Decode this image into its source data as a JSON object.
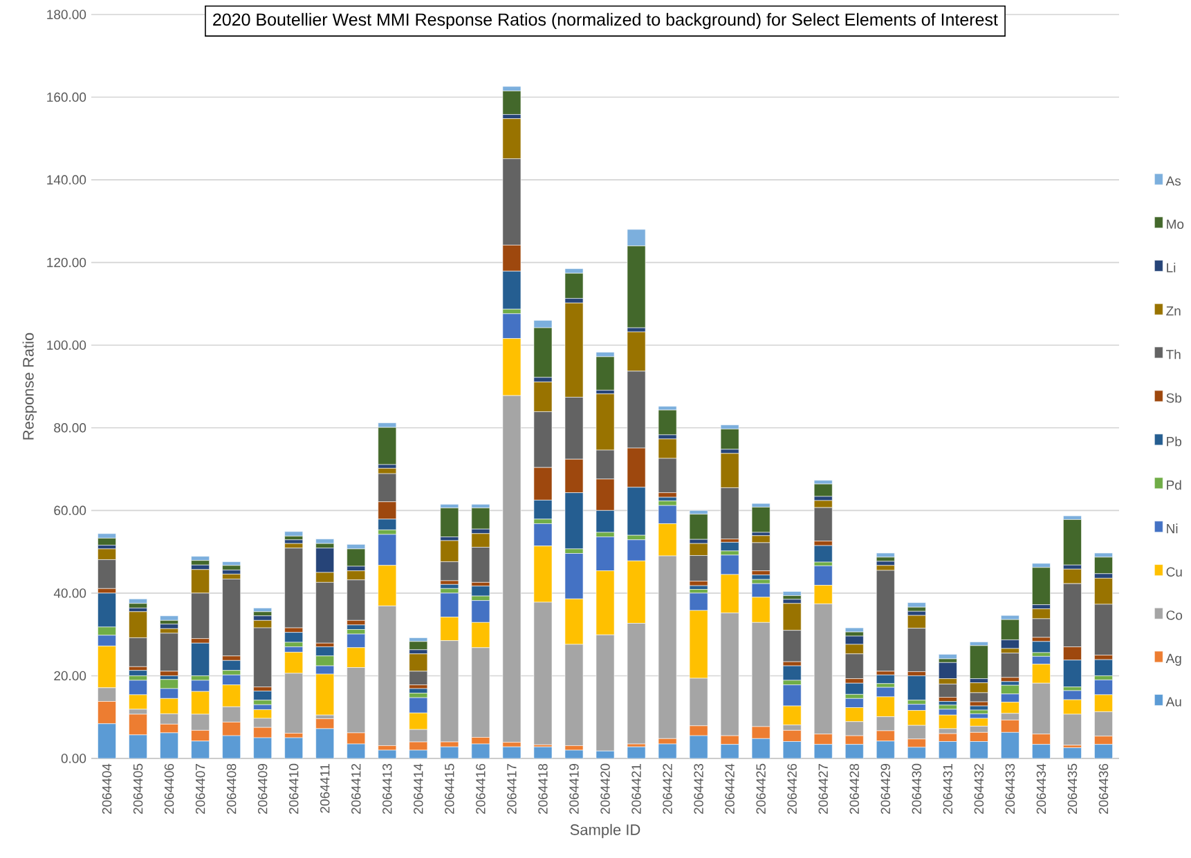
{
  "chart_data": {
    "type": "bar",
    "title": "2020 Boutellier West MMI Response Ratios (normalized to background) for Select Elements of Interest",
    "xlabel": "Sample ID",
    "ylabel": "Response Ratio",
    "stacked": true,
    "grid": "y",
    "legend": "right",
    "categories": [
      "2064404",
      "2064405",
      "2064406",
      "2064407",
      "2064408",
      "2064409",
      "2064410",
      "2064411",
      "2064412",
      "2064413",
      "2064414",
      "2064415",
      "2064416",
      "2064417",
      "2064418",
      "2064419",
      "2064420",
      "2064421",
      "2064422",
      "2064423",
      "2064424",
      "2064425",
      "2064426",
      "2064427",
      "2064428",
      "2064429",
      "2064430",
      "2064431",
      "2064432",
      "2064433",
      "2064434",
      "2064435",
      "2064436"
    ],
    "ylim": [
      0,
      180
    ],
    "yticks": [
      {
        "value": 0,
        "label": "0.00"
      },
      {
        "value": 20,
        "label": "20.00"
      },
      {
        "value": 40,
        "label": "40.00"
      },
      {
        "value": 60,
        "label": "60.00"
      },
      {
        "value": 80,
        "label": "80.00"
      },
      {
        "value": 100,
        "label": "100.00"
      },
      {
        "value": 120,
        "label": "120.00"
      },
      {
        "value": 140,
        "label": "140.00"
      },
      {
        "value": 160,
        "label": "160.00"
      },
      {
        "value": 180,
        "label": "180.00"
      }
    ],
    "series": [
      {
        "name": "Au",
        "color": "#5b9bd5",
        "values": [
          8.4,
          5.7,
          6.2,
          4.2,
          5.5,
          5.0,
          5.0,
          7.2,
          3.5,
          2.0,
          2.0,
          2.8,
          3.5,
          2.8,
          2.8,
          2.0,
          1.8,
          2.8,
          3.5,
          5.5,
          3.4,
          4.8,
          4.1,
          3.4,
          3.4,
          4.2,
          2.7,
          4.1,
          4.1,
          6.3,
          3.4,
          2.6,
          3.4
        ]
      },
      {
        "name": "Ag",
        "color": "#ed7d31",
        "values": [
          5.4,
          5.0,
          2.1,
          2.6,
          3.3,
          2.5,
          1.1,
          2.4,
          2.7,
          1.1,
          2.0,
          1.2,
          1.6,
          1.1,
          0.5,
          1.1,
          null,
          0.7,
          1.3,
          2.4,
          2.1,
          2.9,
          2.7,
          2.5,
          2.1,
          2.5,
          2.0,
          1.9,
          2.2,
          3.0,
          2.5,
          0.6,
          2.0
        ]
      },
      {
        "name": "Co",
        "color": "#a5a5a5",
        "values": [
          3.3,
          1.2,
          2.5,
          3.9,
          3.7,
          2.2,
          14.5,
          0.9,
          15.8,
          33.8,
          3.0,
          24.5,
          21.7,
          83.9,
          34.5,
          24.5,
          28.1,
          29.2,
          44.2,
          11.5,
          29.7,
          25.2,
          1.3,
          31.5,
          3.4,
          3.4,
          3.3,
          1.2,
          1.5,
          1.6,
          12.3,
          7.5,
          5.9
        ]
      },
      {
        "name": "Cu",
        "color": "#ffc000",
        "values": [
          10.1,
          3.5,
          3.7,
          5.5,
          5.3,
          2.1,
          5.1,
          9.9,
          4.8,
          9.8,
          4.0,
          5.7,
          6.1,
          13.8,
          13.6,
          11.0,
          15.5,
          15.1,
          7.8,
          16.4,
          9.3,
          6.1,
          4.6,
          4.5,
          3.4,
          4.8,
          3.6,
          3.3,
          1.9,
          2.7,
          4.6,
          3.5,
          4.1
        ]
      },
      {
        "name": "Ni",
        "color": "#4472c4",
        "values": [
          2.6,
          3.5,
          2.4,
          2.7,
          2.4,
          1.2,
          1.3,
          2.0,
          3.3,
          7.5,
          3.7,
          5.8,
          5.3,
          6.0,
          5.4,
          11.0,
          8.2,
          5.1,
          4.4,
          4.2,
          4.7,
          3.3,
          5.1,
          4.7,
          2.2,
          2.3,
          1.5,
          1.4,
          1.1,
          2.0,
          1.9,
          2.2,
          3.6
        ]
      },
      {
        "name": "Pd",
        "color": "#70ad47",
        "values": [
          2.0,
          1.1,
          2.2,
          1.1,
          1.1,
          1.1,
          1.1,
          2.4,
          1.1,
          1.1,
          1.1,
          1.1,
          1.1,
          1.1,
          1.1,
          1.1,
          1.1,
          1.1,
          1.1,
          0.9,
          1.0,
          1.0,
          1.1,
          0.9,
          1.0,
          0.9,
          1.0,
          1.0,
          0.9,
          2.1,
          0.9,
          0.9,
          1.0
        ]
      },
      {
        "name": "Pb",
        "color": "#255e91",
        "values": [
          8.2,
          1.3,
          0.9,
          7.9,
          2.4,
          2.2,
          2.4,
          2.2,
          1.1,
          2.6,
          1.1,
          1.0,
          2.4,
          9.2,
          4.6,
          13.6,
          5.3,
          11.6,
          0.9,
          0.9,
          2.1,
          1.1,
          3.5,
          4.0,
          2.7,
          2.1,
          5.9,
          0.9,
          1.0,
          0.9,
          2.7,
          6.5,
          3.9
        ]
      },
      {
        "name": "Sb",
        "color": "#9e480e",
        "values": [
          1.1,
          0.9,
          1.1,
          1.1,
          1.1,
          1.0,
          1.1,
          0.9,
          1.1,
          4.2,
          0.9,
          0.9,
          0.9,
          6.3,
          7.9,
          8.1,
          7.6,
          9.5,
          1.1,
          1.1,
          0.8,
          1.0,
          1.0,
          1.1,
          1.1,
          0.9,
          1.0,
          1.0,
          1.0,
          1.0,
          1.0,
          3.2,
          1.1
        ]
      },
      {
        "name": "Th",
        "color": "#636363",
        "values": [
          7.0,
          7.0,
          9.2,
          11.0,
          18.6,
          14.3,
          19.3,
          14.7,
          9.8,
          6.8,
          3.3,
          4.6,
          8.5,
          20.9,
          13.5,
          15.0,
          7.0,
          18.6,
          8.3,
          6.2,
          12.4,
          6.8,
          7.6,
          8.1,
          6.0,
          24.4,
          10.5,
          3.2,
          2.2,
          5.9,
          4.5,
          15.3,
          12.3
        ]
      },
      {
        "name": "Zn",
        "color": "#997300",
        "values": [
          2.6,
          6.3,
          1.1,
          5.7,
          1.2,
          1.8,
          1.1,
          2.4,
          2.2,
          1.3,
          4.2,
          5.1,
          3.3,
          9.7,
          7.2,
          22.8,
          13.6,
          9.5,
          4.7,
          2.9,
          8.3,
          1.7,
          6.5,
          1.7,
          2.3,
          1.2,
          3.1,
          1.3,
          2.4,
          1.1,
          2.4,
          3.5,
          6.3
        ]
      },
      {
        "name": "Li",
        "color": "#264478",
        "values": [
          0.9,
          0.9,
          1.1,
          1.1,
          1.0,
          1.1,
          0.9,
          5.9,
          1.1,
          0.9,
          1.0,
          0.9,
          1.1,
          1.0,
          1.1,
          1.1,
          0.9,
          1.0,
          1.0,
          1.0,
          1.0,
          0.8,
          1.0,
          1.0,
          2.0,
          1.0,
          1.0,
          3.9,
          1.0,
          2.1,
          1.0,
          1.0,
          1.1
        ]
      },
      {
        "name": "Mo",
        "color": "#43682b",
        "values": [
          1.7,
          1.1,
          0.9,
          1.1,
          1.1,
          1.0,
          0.9,
          1.1,
          4.2,
          9.0,
          2.0,
          7.0,
          5.1,
          5.7,
          12.0,
          6.1,
          8.1,
          19.8,
          6.0,
          6.1,
          4.9,
          6.1,
          0.9,
          3.0,
          1.0,
          1.0,
          1.0,
          0.9,
          8.0,
          4.9,
          9.0,
          11.0,
          4.0
        ]
      },
      {
        "name": "As",
        "color": "#7cafdd",
        "values": [
          1.1,
          1.1,
          1.1,
          1.0,
          0.9,
          0.9,
          1.1,
          1.1,
          1.1,
          1.1,
          0.9,
          0.9,
          0.9,
          1.1,
          1.8,
          1.1,
          1.1,
          4.0,
          0.9,
          0.9,
          1.0,
          0.9,
          1.0,
          0.9,
          1.0,
          1.0,
          1.1,
          1.1,
          0.9,
          1.0,
          1.0,
          0.9,
          1.0
        ]
      }
    ]
  }
}
